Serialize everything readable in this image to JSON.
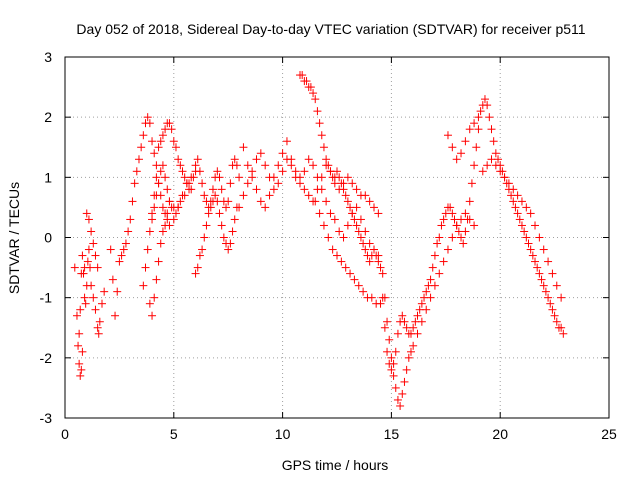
{
  "chart_data": {
    "type": "scatter",
    "title": "Day 052 of 2018, Sidereal Day-to-day VTEC variation (SDTVAR) for receiver p511",
    "xlabel": "GPS time / hours",
    "ylabel": "SDTVAR / TECUs",
    "xlim": [
      0,
      25
    ],
    "ylim": [
      -3,
      3
    ],
    "x_ticks": [
      0,
      5,
      10,
      15,
      20,
      25
    ],
    "y_ticks": [
      -3,
      -2,
      -1,
      0,
      1,
      2,
      3
    ],
    "x_tick_labels": [
      "0",
      "5",
      "10",
      "15",
      "20",
      "25"
    ],
    "y_tick_labels": [
      "-3",
      "-2",
      "-1",
      "0",
      "1",
      "2",
      "3"
    ],
    "grid": true,
    "marker": "plus",
    "color": "#ff0000",
    "series": [
      {
        "name": "SDTVAR",
        "x": [
          0.45,
          0.55,
          0.6,
          0.65,
          0.7,
          0.75,
          0.8,
          0.85,
          0.9,
          0.95,
          1.0,
          1.05,
          1.1,
          1.15,
          1.2,
          1.3,
          1.4,
          1.5,
          1.55,
          1.6,
          1.7,
          1.8,
          1.5,
          1.4,
          1.3,
          1.2,
          1.1,
          1.0,
          0.9,
          0.8,
          0.75,
          0.7,
          0.65,
          2.1,
          2.2,
          2.3,
          2.4,
          2.5,
          2.6,
          2.7,
          2.8,
          2.9,
          3.0,
          3.1,
          3.2,
          3.3,
          3.4,
          3.5,
          3.6,
          3.7,
          3.8,
          3.9,
          4.0,
          4.1,
          4.2,
          4.3,
          4.4,
          4.5,
          4.6,
          4.7,
          4.8,
          4.9,
          5.0,
          5.1,
          5.2,
          5.3,
          5.4,
          5.5,
          5.6,
          5.7,
          5.8,
          4.0,
          4.1,
          4.2,
          4.3,
          4.4,
          4.5,
          4.6,
          4.7,
          4.8,
          4.9,
          5.0,
          5.1,
          5.2,
          5.3,
          5.5,
          5.7,
          5.9,
          6.0,
          6.1,
          6.2,
          6.3,
          6.4,
          6.5,
          6.6,
          6.7,
          6.8,
          6.9,
          7.0,
          7.1,
          7.2,
          7.3,
          7.4,
          7.5,
          7.6,
          7.7,
          7.8,
          7.9,
          8.0,
          3.9,
          4.0,
          4.1,
          4.2,
          4.3,
          4.4,
          4.5,
          4.6,
          4.7,
          4.8,
          6.0,
          6.1,
          6.2,
          6.3,
          6.4,
          6.5,
          6.6,
          6.7,
          6.8,
          6.9,
          7.0,
          7.1,
          7.2,
          7.3,
          7.4,
          7.5,
          7.6,
          7.7,
          7.8,
          7.9,
          3.6,
          3.7,
          3.8,
          3.9,
          4.0,
          4.1,
          4.2,
          4.3,
          4.4,
          4.5,
          4.6,
          4.7,
          4.8,
          5.0,
          5.2,
          5.4,
          5.6,
          5.8,
          6.0,
          8.0,
          8.2,
          8.4,
          8.6,
          8.8,
          9.0,
          9.2,
          9.4,
          9.6,
          9.8,
          10.0,
          10.2,
          10.4,
          10.6,
          10.8,
          11.0,
          11.2,
          11.4,
          11.6,
          11.8,
          12.0,
          12.2,
          12.4,
          12.6,
          12.8,
          13.0,
          13.2,
          13.4,
          13.6,
          13.8,
          14.0,
          14.2,
          14.4,
          8.2,
          8.4,
          8.6,
          8.8,
          9.0,
          9.2,
          9.4,
          9.6,
          9.8,
          10.0,
          10.2,
          10.4,
          10.6,
          10.8,
          11.0,
          11.2,
          11.4,
          11.6,
          11.8,
          12.0,
          12.2,
          12.4,
          12.6,
          12.8,
          13.0,
          13.2,
          13.4,
          13.6,
          13.8,
          14.0,
          14.2,
          14.4,
          10.8,
          10.9,
          11.0,
          11.1,
          11.2,
          11.3,
          11.4,
          11.5,
          11.6,
          11.7,
          11.8,
          11.9,
          12.0,
          12.1,
          12.2,
          12.3,
          12.4,
          12.5,
          12.6,
          12.7,
          12.8,
          12.9,
          13.0,
          13.1,
          13.2,
          13.3,
          13.4,
          13.5,
          13.6,
          13.7,
          13.8,
          13.9,
          14.0,
          14.1,
          14.2,
          14.3,
          14.4,
          14.5,
          14.6,
          11.5,
          11.7,
          11.9,
          12.1,
          12.3,
          12.5,
          12.7,
          12.9,
          13.1,
          13.3,
          13.5,
          13.7,
          13.9,
          14.1,
          14.3,
          14.5,
          14.7,
          14.6,
          14.7,
          14.8,
          14.9,
          15.0,
          15.1,
          15.2,
          15.3,
          15.4,
          15.5,
          15.6,
          15.7,
          15.8,
          15.9,
          16.0,
          16.1,
          16.2,
          16.3,
          16.4,
          16.5,
          16.6,
          16.7,
          16.8,
          16.9,
          17.0,
          17.1,
          17.2,
          17.3,
          17.4,
          17.5,
          17.6,
          17.7,
          17.8,
          17.9,
          18.0,
          18.1,
          18.2,
          18.3,
          18.4,
          18.5,
          18.6,
          18.7,
          18.8,
          18.9,
          19.0,
          14.8,
          14.9,
          15.0,
          15.1,
          15.2,
          15.3,
          15.4,
          15.5,
          15.6,
          15.7,
          15.8,
          15.9,
          16.0,
          16.2,
          16.4,
          16.6,
          16.8,
          17.0,
          17.2,
          17.4,
          17.6,
          17.8,
          18.0,
          18.2,
          18.4,
          18.6,
          18.8,
          17.6,
          17.8,
          18.0,
          18.2,
          18.4,
          18.6,
          18.8,
          19.0,
          19.1,
          19.2,
          19.3,
          19.4,
          19.5,
          19.6,
          19.7,
          19.8,
          19.9,
          20.0,
          20.1,
          20.2,
          20.3,
          20.4,
          20.5,
          20.6,
          20.7,
          20.8,
          20.9,
          21.0,
          21.1,
          21.2,
          21.3,
          21.4,
          21.5,
          21.6,
          21.7,
          21.8,
          21.9,
          22.0,
          22.1,
          22.2,
          22.3,
          22.4,
          22.5,
          22.6,
          22.7,
          22.8,
          22.9,
          19.2,
          19.4,
          19.6,
          19.8,
          20.0,
          20.2,
          20.4,
          20.6,
          20.8,
          21.0,
          21.2,
          21.4,
          21.6,
          21.8,
          22.0,
          22.2,
          22.4,
          22.6,
          22.8
        ],
        "y": [
          -0.5,
          -1.3,
          -1.8,
          -1.6,
          -1.2,
          -0.6,
          -0.3,
          -0.6,
          -1.0,
          -1.1,
          -0.8,
          -0.4,
          -0.2,
          -0.5,
          -0.8,
          -1.0,
          -1.2,
          -1.5,
          -1.6,
          -1.4,
          -1.1,
          -0.9,
          -0.5,
          -0.3,
          -0.1,
          0.1,
          0.3,
          0.4,
          -0.5,
          -1.9,
          -2.2,
          -2.3,
          -2.1,
          -0.2,
          -0.7,
          -1.3,
          -0.9,
          -0.4,
          -0.3,
          -0.2,
          -0.1,
          0.1,
          0.3,
          0.6,
          0.9,
          1.1,
          1.3,
          1.5,
          1.7,
          1.9,
          2.0,
          1.9,
          1.6,
          1.4,
          1.2,
          1.5,
          1.6,
          1.7,
          1.8,
          1.9,
          1.9,
          1.8,
          1.6,
          1.5,
          1.3,
          1.2,
          1.1,
          1.0,
          0.9,
          0.8,
          0.8,
          0.3,
          0.5,
          0.7,
          0.9,
          1.1,
          1.2,
          1.0,
          0.8,
          0.6,
          0.5,
          0.5,
          0.4,
          0.5,
          0.6,
          0.7,
          0.9,
          1.0,
          1.2,
          1.3,
          1.1,
          0.9,
          0.7,
          0.6,
          0.5,
          0.6,
          0.8,
          1.0,
          1.1,
          1.0,
          0.8,
          0.6,
          0.5,
          0.6,
          0.9,
          1.2,
          1.3,
          1.2,
          1.0,
          -1.1,
          -1.3,
          -1.0,
          -0.7,
          -0.4,
          -0.1,
          0.1,
          0.2,
          0.4,
          0.6,
          -0.6,
          -0.5,
          -0.3,
          -0.2,
          0.0,
          0.2,
          0.4,
          0.5,
          0.6,
          0.7,
          0.6,
          0.4,
          0.2,
          0.0,
          -0.1,
          -0.2,
          -0.1,
          0.1,
          0.3,
          0.5,
          -0.8,
          -0.5,
          -0.2,
          0.1,
          0.4,
          0.7,
          1.0,
          0.9,
          0.7,
          0.5,
          0.4,
          0.3,
          0.2,
          0.3,
          0.5,
          0.7,
          0.9,
          1.0,
          1.1,
          0.5,
          0.7,
          0.9,
          1.1,
          1.3,
          1.4,
          1.2,
          1.0,
          0.8,
          0.9,
          1.1,
          1.3,
          1.2,
          1.0,
          0.9,
          0.8,
          0.7,
          0.6,
          0.8,
          1.0,
          1.2,
          1.1,
          0.9,
          0.8,
          0.9,
          1.0,
          0.9,
          0.8,
          0.7,
          0.7,
          0.6,
          0.5,
          0.4,
          1.5,
          1.2,
          1.0,
          0.8,
          0.6,
          0.5,
          0.7,
          1.0,
          1.2,
          1.4,
          1.6,
          1.3,
          1.1,
          1.0,
          1.1,
          1.3,
          1.2,
          1.0,
          0.8,
          0.6,
          0.4,
          0.3,
          0.1,
          0.0,
          0.2,
          0.4,
          0.5,
          0.3,
          0.1,
          -0.1,
          -0.2,
          -0.3,
          2.7,
          2.7,
          2.6,
          2.6,
          2.5,
          2.5,
          2.4,
          2.3,
          2.1,
          1.9,
          1.7,
          1.5,
          1.3,
          1.2,
          1.1,
          1.0,
          1.0,
          1.1,
          1.0,
          0.9,
          0.8,
          0.7,
          0.6,
          0.5,
          0.4,
          0.3,
          0.2,
          0.1,
          0.0,
          -0.1,
          -0.2,
          -0.3,
          -0.4,
          -0.3,
          -0.2,
          -0.3,
          -0.4,
          -0.5,
          -0.6,
          0.6,
          0.4,
          0.2,
          0.0,
          -0.2,
          -0.3,
          -0.4,
          -0.5,
          -0.6,
          -0.7,
          -0.8,
          -0.9,
          -1.0,
          -1.0,
          -1.1,
          -1.1,
          -1.0,
          -1.0,
          -1.5,
          -1.9,
          -2.1,
          -2.2,
          -2.1,
          -1.9,
          -1.6,
          -1.4,
          -1.3,
          -1.4,
          -1.5,
          -1.6,
          -1.6,
          -1.5,
          -1.4,
          -1.3,
          -1.2,
          -1.1,
          -1.0,
          -0.9,
          -0.8,
          -0.7,
          -0.5,
          -0.3,
          -0.1,
          0.0,
          0.2,
          0.3,
          0.4,
          0.5,
          0.5,
          0.4,
          0.3,
          0.2,
          0.1,
          0.0,
          -0.1,
          0.1,
          0.3,
          0.6,
          0.9,
          1.2,
          1.5,
          1.8,
          -1.4,
          -1.7,
          -2.0,
          -2.3,
          -2.5,
          -2.7,
          -2.8,
          -2.6,
          -2.4,
          -2.2,
          -2.0,
          -1.9,
          -1.8,
          -1.6,
          -1.4,
          -1.2,
          -1.0,
          -0.8,
          -0.6,
          -0.4,
          -0.2,
          0.0,
          0.2,
          0.3,
          0.4,
          0.3,
          0.2,
          1.7,
          1.5,
          1.3,
          1.4,
          1.6,
          1.8,
          1.9,
          2.0,
          2.1,
          2.2,
          2.3,
          2.2,
          2.0,
          1.8,
          1.6,
          1.4,
          1.3,
          1.2,
          1.1,
          1.0,
          0.9,
          0.8,
          0.7,
          0.6,
          0.5,
          0.4,
          0.3,
          0.2,
          0.1,
          0.0,
          -0.1,
          -0.2,
          -0.3,
          -0.4,
          -0.5,
          -0.6,
          -0.7,
          -0.8,
          -0.9,
          -1.0,
          -1.1,
          -1.2,
          -1.3,
          -1.4,
          -1.5,
          -1.5,
          -1.6,
          1.1,
          1.2,
          1.3,
          1.2,
          1.1,
          1.0,
          0.9,
          0.8,
          0.7,
          0.6,
          0.5,
          0.4,
          0.2,
          0.0,
          -0.2,
          -0.4,
          -0.6,
          -0.8,
          -1.0
        ]
      }
    ]
  }
}
